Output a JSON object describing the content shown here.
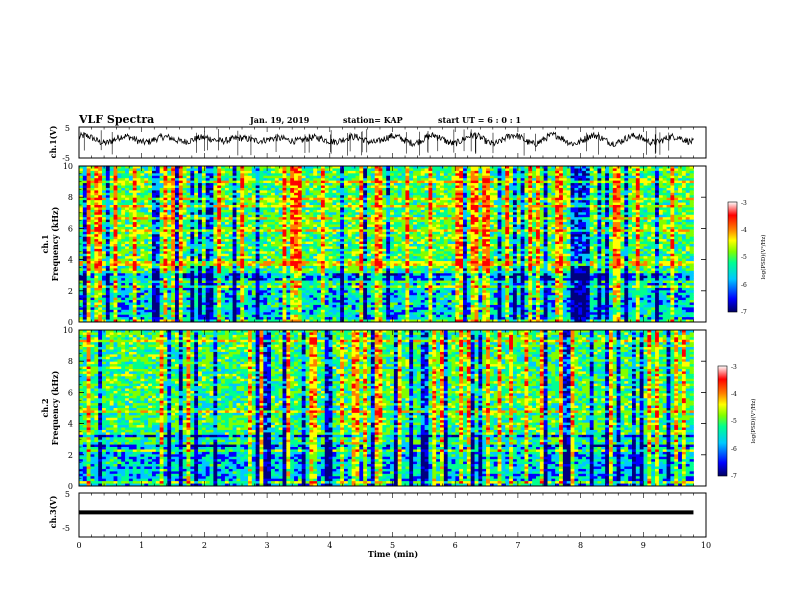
{
  "header": {
    "title": "VLF Spectra",
    "date": "Jan. 19, 2019",
    "station": "station= KAP",
    "start_ut": "start UT =  6 : 0 : 1"
  },
  "chart_data": [
    {
      "type": "line",
      "id": "ch1-waveform",
      "ylabel": "ch.1(V)",
      "ylim": [
        -5,
        5
      ],
      "yticks": [
        "5",
        "-5"
      ],
      "xlim": [
        0,
        10
      ],
      "series_color": "#000000",
      "y_mean_approx": 1.0,
      "y_amplitude_approx": 1.5
    },
    {
      "type": "heatmap",
      "id": "ch1-spectrogram",
      "ylabel": "ch.1\nFrequency (kHz)",
      "ylabel_line1": "ch.1",
      "ylabel_line2": "Frequency (kHz)",
      "ylim": [
        0,
        10
      ],
      "yticks": [
        "0",
        "2",
        "4",
        "6",
        "8",
        "10"
      ],
      "xlim": [
        0,
        9.8
      ],
      "colorbar": {
        "label": "log(PSD)(V²/Hz)",
        "range": [
          -7,
          -3
        ],
        "ticks": [
          "-3",
          "-4",
          "-5",
          "-6",
          "-7"
        ]
      }
    },
    {
      "type": "heatmap",
      "id": "ch2-spectrogram",
      "ylabel_line1": "ch.2",
      "ylabel_line2": "Frequency (kHz)",
      "ylim": [
        0,
        10
      ],
      "yticks": [
        "0",
        "2",
        "4",
        "6",
        "8",
        "10"
      ],
      "xlim": [
        0,
        9.8
      ],
      "colorbar": {
        "label": "log(PSD)(V²/Hz)",
        "range": [
          -7,
          -3
        ],
        "ticks": [
          "-3",
          "-4",
          "-5",
          "-6",
          "-7"
        ]
      }
    },
    {
      "type": "line",
      "id": "ch3-waveform",
      "ylabel": "ch.3(V)",
      "ylim": [
        -5,
        5
      ],
      "yticks": [
        "5",
        "-5"
      ],
      "xlim": [
        0,
        9.8
      ],
      "y_constant_approx": -1.0
    }
  ],
  "xaxis": {
    "label": "Time (min)",
    "ticks": [
      "0",
      "1",
      "2",
      "3",
      "4",
      "5",
      "6",
      "7",
      "8",
      "9",
      "10"
    ],
    "range": [
      0,
      10
    ]
  },
  "colors": {
    "colormap": [
      "#000080",
      "#0000ff",
      "#00c8ff",
      "#00ff90",
      "#80ff00",
      "#ffff00",
      "#ff8000",
      "#ff0000",
      "#ffffff"
    ]
  }
}
